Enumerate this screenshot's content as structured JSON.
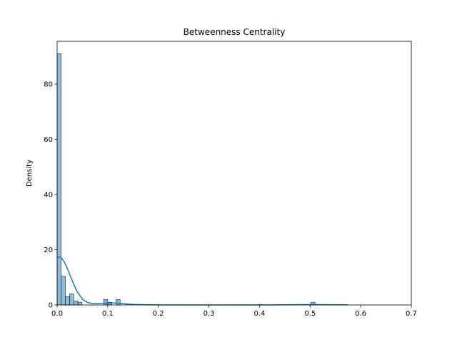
{
  "chart_data": {
    "type": "bar",
    "title": "Betweenness Centrality",
    "xlabel": "",
    "ylabel": "Density",
    "xlim": [
      0,
      0.7
    ],
    "ylim": [
      0,
      95.5
    ],
    "xticks": [
      "0.0",
      "0.1",
      "0.2",
      "0.3",
      "0.4",
      "0.5",
      "0.6",
      "0.7"
    ],
    "xtick_values": [
      0,
      0.1,
      0.2,
      0.3,
      0.4,
      0.5,
      0.6,
      0.7
    ],
    "yticks": [
      "0",
      "20",
      "40",
      "60",
      "80"
    ],
    "ytick_values": [
      0,
      20,
      40,
      60,
      80
    ],
    "bin_width": 0.0082,
    "bins": [
      {
        "x": 0.0,
        "density": 91.0
      },
      {
        "x": 0.0082,
        "density": 10.4
      },
      {
        "x": 0.0164,
        "density": 3.0
      },
      {
        "x": 0.0246,
        "density": 4.0
      },
      {
        "x": 0.0328,
        "density": 1.5
      },
      {
        "x": 0.041,
        "density": 1.0
      },
      {
        "x": 0.0918,
        "density": 2.0
      },
      {
        "x": 0.1,
        "density": 1.0
      },
      {
        "x": 0.1164,
        "density": 2.0
      },
      {
        "x": 0.5016,
        "density": 1.0
      }
    ],
    "kde": {
      "x": [
        0,
        0.005,
        0.01,
        0.015,
        0.02,
        0.025,
        0.03,
        0.035,
        0.04,
        0.05,
        0.06,
        0.07,
        0.08,
        0.09,
        0.1,
        0.11,
        0.12,
        0.13,
        0.15,
        0.18,
        0.2,
        0.3,
        0.4,
        0.45,
        0.5,
        0.55,
        0.575
      ],
      "y": [
        17.3,
        17.4,
        16.7,
        15.3,
        13.3,
        11.0,
        8.8,
        6.6,
        4.7,
        2.1,
        0.9,
        0.5,
        0.45,
        0.55,
        0.7,
        0.75,
        0.65,
        0.45,
        0.2,
        0.06,
        0.03,
        0.01,
        0.02,
        0.05,
        0.12,
        0.08,
        0.05
      ]
    },
    "grid": false,
    "colors": {
      "bar_fill": "#1f77b4",
      "bar_fill_opacity": 0.5,
      "bar_edge": "#000000",
      "kde_line": "#1f77b4"
    }
  }
}
